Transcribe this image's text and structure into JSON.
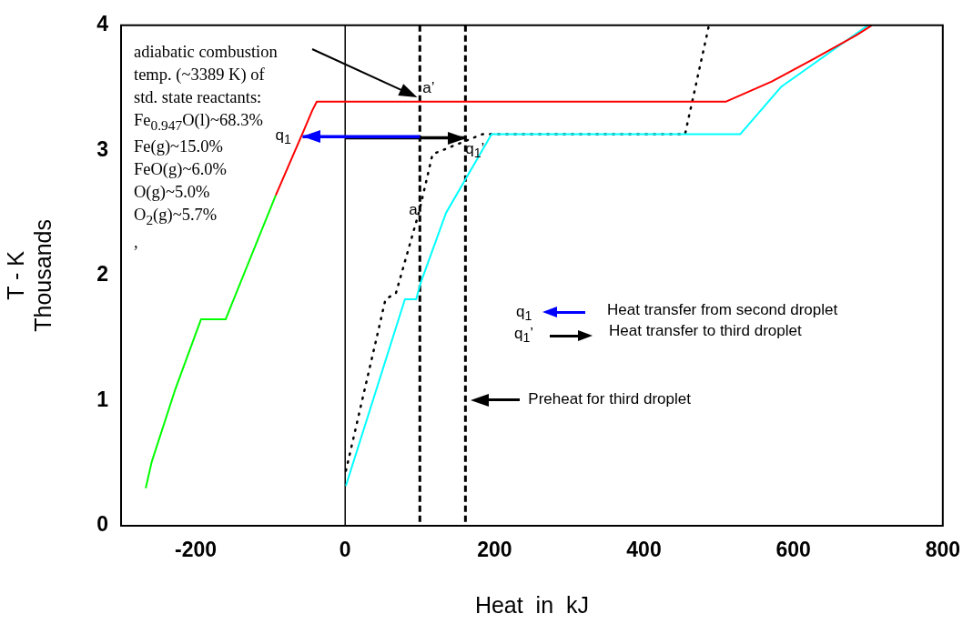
{
  "chart_data": {
    "type": "line",
    "xlabel": "Heat  in  kJ",
    "ylabel": "T - K\nThousands",
    "xlim": [
      -300,
      800
    ],
    "xticks": [
      -200,
      0,
      200,
      400,
      600,
      800
    ],
    "ylim": [
      0,
      4
    ],
    "yticks": [
      0,
      1,
      2,
      3,
      4
    ],
    "grid": false,
    "legend": false,
    "marker": "none",
    "series": [
      {
        "color": "#00ff00",
        "x": [
          -267,
          -259,
          -228,
          -193,
          -160,
          -93
        ],
        "values": [
          0.3,
          0.51,
          1.08,
          1.65,
          1.65,
          2.64
        ]
      },
      {
        "color": "#ff0000",
        "x": [
          -93,
          -56,
          -44,
          -38,
          510,
          571,
          627,
          684,
          705
        ],
        "values": [
          2.64,
          3.15,
          3.32,
          3.39,
          3.39,
          3.55,
          3.73,
          3.92,
          4.0
        ]
      },
      {
        "color": "#00ffff",
        "x": [
          1,
          80,
          95,
          101,
          135,
          196,
          529,
          584,
          700
        ],
        "values": [
          0.32,
          1.81,
          1.81,
          1.94,
          2.5,
          3.13,
          3.13,
          3.51,
          4.0
        ]
      },
      {
        "color": "#000000",
        "line_style": "dotted",
        "x": [
          1,
          54,
          68,
          99,
          117,
          184,
          455,
          487
        ],
        "values": [
          0.44,
          1.81,
          1.86,
          2.51,
          2.97,
          3.13,
          3.13,
          4.0
        ]
      },
      {
        "color": "#0000ff",
        "x": [
          100,
          -57
        ],
        "values": [
          3.11,
          3.11
        ]
      },
      {
        "color": "#000000",
        "x": [
          0,
          162
        ],
        "values": [
          3.1,
          3.1
        ]
      }
    ],
    "ref_lines": [
      {
        "axis": "x",
        "value": 0,
        "color": "#000000",
        "line_style": "solid"
      },
      {
        "axis": "x",
        "value": 100,
        "color": "#000000",
        "line_style": "dashed"
      },
      {
        "axis": "x",
        "value": 161,
        "color": "#000000",
        "line_style": "dashed"
      }
    ],
    "annotations": [
      "adiabatic combustion\ntemp. (~3389 K) of\nstd. state reactants:\nFe$_{0.947}$O(l)~68.3%\nFe(g)~15.0%\nFeO(g)~6.0%\nO(g)~5.0%\nO$_{2}$(g)~5.7%\n,",
      {
        "text": "a’",
        "x": 100,
        "y": 3.39
      },
      {
        "text": "a",
        "x": 100,
        "y": 2.5
      },
      {
        "text": "q$_{1}$",
        "x": -57,
        "y": 3.11
      },
      {
        "text": "q$_{1}$’",
        "x": 162,
        "y": 3.1
      },
      "q$_{1}$",
      "Heat transfer from second droplet",
      "q$_{1}$’",
      "Heat transfer to third droplet",
      "Preheat for third droplet"
    ]
  }
}
